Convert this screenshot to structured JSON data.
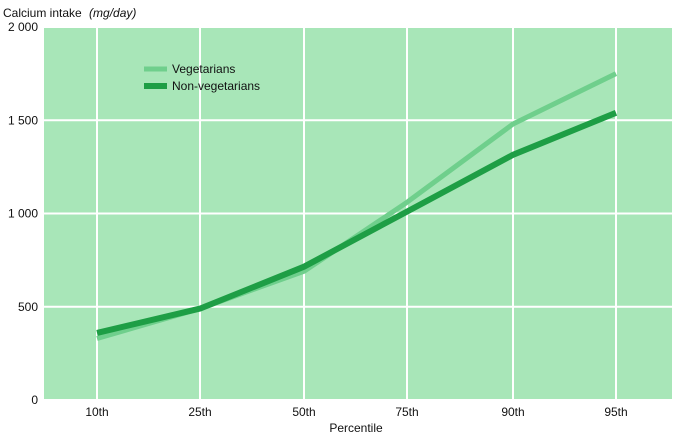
{
  "chart_data": {
    "type": "line",
    "ylabel": "Calcium intake",
    "ylabel_unit": "(mg/day)",
    "xlabel": "Percentile",
    "categories": [
      "10th",
      "25th",
      "50th",
      "75th",
      "90th",
      "95th"
    ],
    "ylim": [
      0,
      2000
    ],
    "yticks": [
      0,
      500,
      1000,
      1500,
      2000
    ],
    "ytick_labels": [
      "0",
      "500",
      "1 000",
      "1 500",
      "2 000"
    ],
    "grid": true,
    "legend_position": "top-left",
    "series": [
      {
        "name": "Vegetarians",
        "color": "#6fcf8c",
        "values": [
          330,
          490,
          690,
          1060,
          1480,
          1750
        ]
      },
      {
        "name": "Non-vegetarians",
        "color": "#1e9e45",
        "values": [
          360,
          490,
          715,
          1010,
          1315,
          1540
        ]
      }
    ],
    "colors": {
      "plot_background": "#a8e6b8",
      "grid": "#ffffff"
    }
  }
}
